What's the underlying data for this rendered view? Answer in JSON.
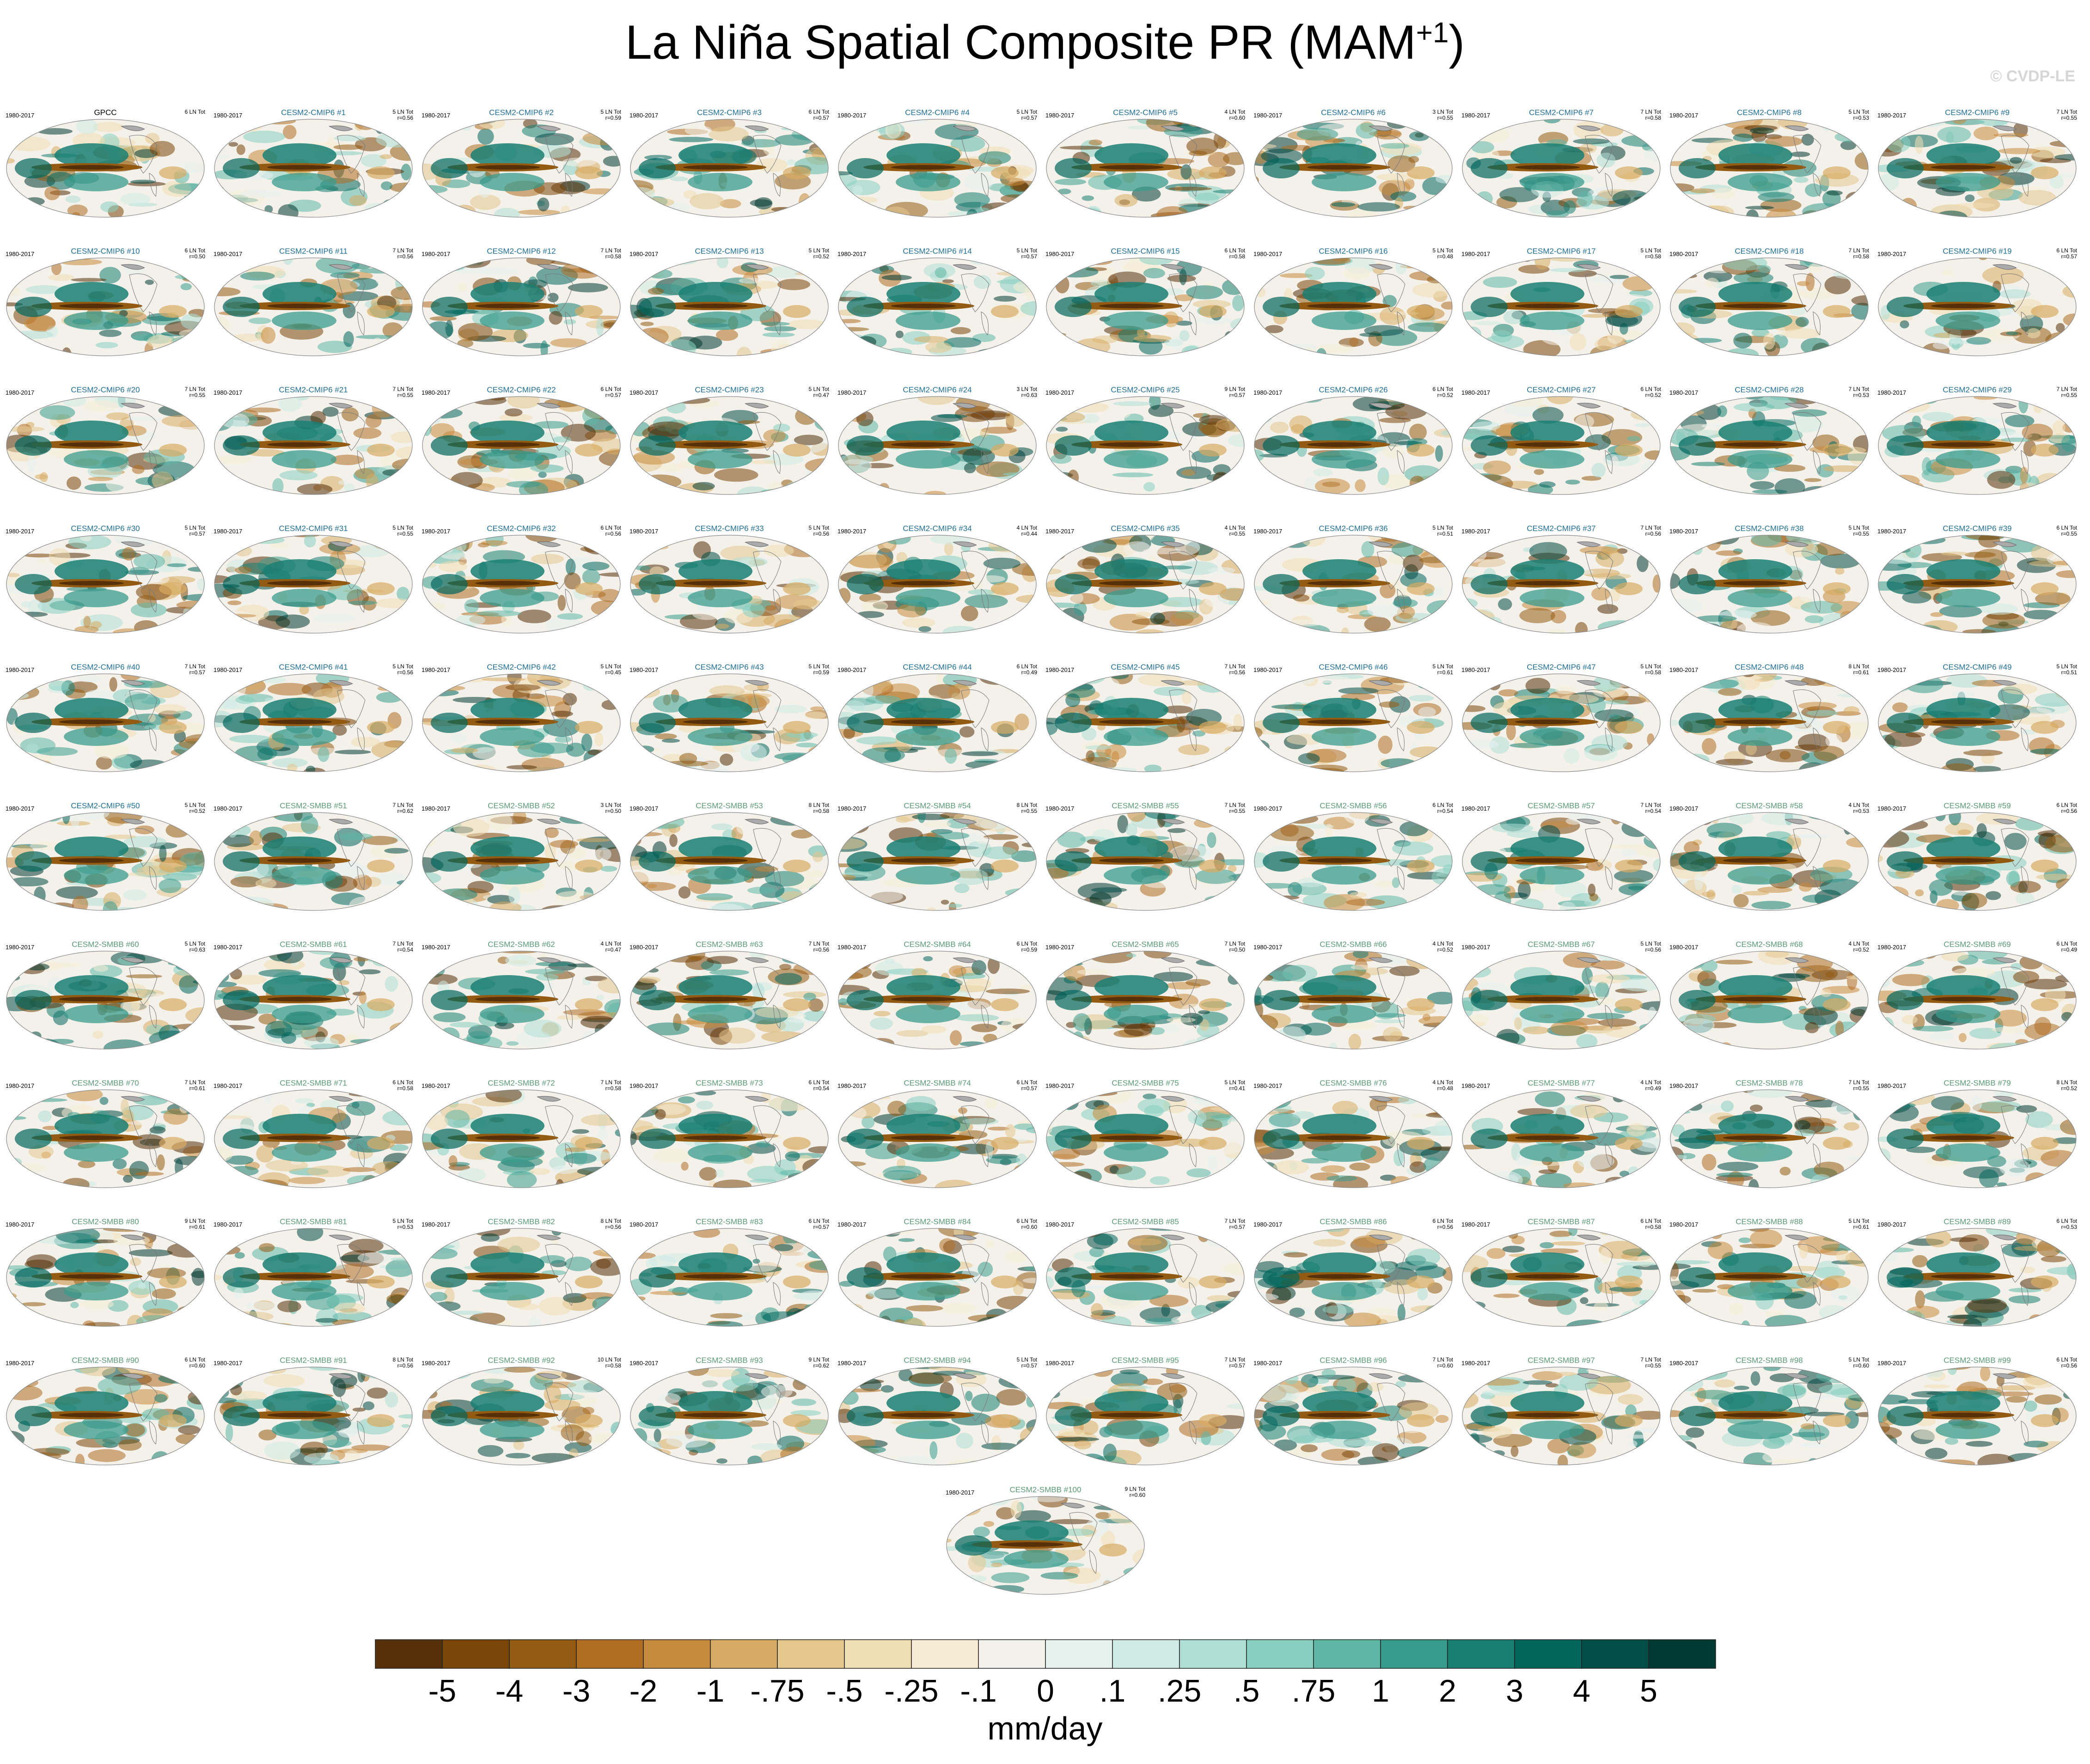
{
  "title_main": "La Niña Spatial Composite PR (MAM",
  "title_sup": "+1",
  "title_close": ")",
  "watermark": "© CVDP-LE",
  "units": "mm/day",
  "chart_data": {
    "type": "heatmap",
    "variable": "PR",
    "season": "MAM+1",
    "composite": "La Niña",
    "period": "1980-2017",
    "units": "mm/day",
    "colorbar": {
      "levels": [
        "-5",
        "-4",
        "-3",
        "-2",
        "-1",
        "-.75",
        "-.5",
        "-.25",
        "-.1",
        "0",
        ".1",
        ".25",
        ".5",
        ".75",
        "1",
        "2",
        "3",
        "4",
        "5"
      ],
      "colors": [
        "#553008",
        "#7a4509",
        "#935b12",
        "#b06e24",
        "#c78b3d",
        "#d7ab63",
        "#e4c78d",
        "#f0dfb5",
        "#f6ecd5",
        "#f4f1ea",
        "#e7f1ee",
        "#d0ebe5",
        "#afdfd6",
        "#89cfc1",
        "#5eb7a5",
        "#399b8c",
        "#1a7f73",
        "#02665c",
        "#024d45",
        "#013a32"
      ]
    },
    "panels": [
      {
        "name": "GPCC",
        "period": "1980-2017",
        "events": "6 LN Tot",
        "r": ""
      },
      {
        "name": "CESM2-CMIP6 #1",
        "period": "1980-2017",
        "events": "5 LN Tot",
        "r": "r=0.56"
      },
      {
        "name": "CESM2-CMIP6 #2",
        "period": "1980-2017",
        "events": "5 LN Tot",
        "r": "r=0.59"
      },
      {
        "name": "CESM2-CMIP6 #3",
        "period": "1980-2017",
        "events": "6 LN Tot",
        "r": "r=0.57"
      },
      {
        "name": "CESM2-CMIP6 #4",
        "period": "1980-2017",
        "events": "5 LN Tot",
        "r": "r=0.57"
      },
      {
        "name": "CESM2-CMIP6 #5",
        "period": "1980-2017",
        "events": "4 LN Tot",
        "r": "r=0.60"
      },
      {
        "name": "CESM2-CMIP6 #6",
        "period": "1980-2017",
        "events": "3 LN Tot",
        "r": "r=0.55"
      },
      {
        "name": "CESM2-CMIP6 #7",
        "period": "1980-2017",
        "events": "7 LN Tot",
        "r": "r=0.58"
      },
      {
        "name": "CESM2-CMIP6 #8",
        "period": "1980-2017",
        "events": "5 LN Tot",
        "r": "r=0.53"
      },
      {
        "name": "CESM2-CMIP6 #9",
        "period": "1980-2017",
        "events": "7 LN Tot",
        "r": "r=0.55"
      },
      {
        "name": "CESM2-CMIP6 #10",
        "period": "1980-2017",
        "events": "6 LN Tot",
        "r": "r=0.50"
      },
      {
        "name": "CESM2-CMIP6 #11",
        "period": "1980-2017",
        "events": "7 LN Tot",
        "r": "r=0.56"
      },
      {
        "name": "CESM2-CMIP6 #12",
        "period": "1980-2017",
        "events": "7 LN Tot",
        "r": "r=0.58"
      },
      {
        "name": "CESM2-CMIP6 #13",
        "period": "1980-2017",
        "events": "5 LN Tot",
        "r": "r=0.52"
      },
      {
        "name": "CESM2-CMIP6 #14",
        "period": "1980-2017",
        "events": "5 LN Tot",
        "r": "r=0.57"
      },
      {
        "name": "CESM2-CMIP6 #15",
        "period": "1980-2017",
        "events": "6 LN Tot",
        "r": "r=0.58"
      },
      {
        "name": "CESM2-CMIP6 #16",
        "period": "1980-2017",
        "events": "5 LN Tot",
        "r": "r=0.48"
      },
      {
        "name": "CESM2-CMIP6 #17",
        "period": "1980-2017",
        "events": "5 LN Tot",
        "r": "r=0.58"
      },
      {
        "name": "CESM2-CMIP6 #18",
        "period": "1980-2017",
        "events": "7 LN Tot",
        "r": "r=0.58"
      },
      {
        "name": "CESM2-CMIP6 #19",
        "period": "1980-2017",
        "events": "6 LN Tot",
        "r": "r=0.57"
      },
      {
        "name": "CESM2-CMIP6 #20",
        "period": "1980-2017",
        "events": "7 LN Tot",
        "r": "r=0.55"
      },
      {
        "name": "CESM2-CMIP6 #21",
        "period": "1980-2017",
        "events": "7 LN Tot",
        "r": "r=0.55"
      },
      {
        "name": "CESM2-CMIP6 #22",
        "period": "1980-2017",
        "events": "6 LN Tot",
        "r": "r=0.57"
      },
      {
        "name": "CESM2-CMIP6 #23",
        "period": "1980-2017",
        "events": "5 LN Tot",
        "r": "r=0.47"
      },
      {
        "name": "CESM2-CMIP6 #24",
        "period": "1980-2017",
        "events": "3 LN Tot",
        "r": "r=0.63"
      },
      {
        "name": "CESM2-CMIP6 #25",
        "period": "1980-2017",
        "events": "9 LN Tot",
        "r": "r=0.57"
      },
      {
        "name": "CESM2-CMIP6 #26",
        "period": "1980-2017",
        "events": "6 LN Tot",
        "r": "r=0.52"
      },
      {
        "name": "CESM2-CMIP6 #27",
        "period": "1980-2017",
        "events": "6 LN Tot",
        "r": "r=0.52"
      },
      {
        "name": "CESM2-CMIP6 #28",
        "period": "1980-2017",
        "events": "7 LN Tot",
        "r": "r=0.53"
      },
      {
        "name": "CESM2-CMIP6 #29",
        "period": "1980-2017",
        "events": "7 LN Tot",
        "r": "r=0.55"
      },
      {
        "name": "CESM2-CMIP6 #30",
        "period": "1980-2017",
        "events": "5 LN Tot",
        "r": "r=0.57"
      },
      {
        "name": "CESM2-CMIP6 #31",
        "period": "1980-2017",
        "events": "5 LN Tot",
        "r": "r=0.55"
      },
      {
        "name": "CESM2-CMIP6 #32",
        "period": "1980-2017",
        "events": "6 LN Tot",
        "r": "r=0.56"
      },
      {
        "name": "CESM2-CMIP6 #33",
        "period": "1980-2017",
        "events": "5 LN Tot",
        "r": "r=0.56"
      },
      {
        "name": "CESM2-CMIP6 #34",
        "period": "1980-2017",
        "events": "4 LN Tot",
        "r": "r=0.44"
      },
      {
        "name": "CESM2-CMIP6 #35",
        "period": "1980-2017",
        "events": "4 LN Tot",
        "r": "r=0.55"
      },
      {
        "name": "CESM2-CMIP6 #36",
        "period": "1980-2017",
        "events": "5 LN Tot",
        "r": "r=0.51"
      },
      {
        "name": "CESM2-CMIP6 #37",
        "period": "1980-2017",
        "events": "7 LN Tot",
        "r": "r=0.56"
      },
      {
        "name": "CESM2-CMIP6 #38",
        "period": "1980-2017",
        "events": "5 LN Tot",
        "r": "r=0.55"
      },
      {
        "name": "CESM2-CMIP6 #39",
        "period": "1980-2017",
        "events": "6 LN Tot",
        "r": "r=0.55"
      },
      {
        "name": "CESM2-CMIP6 #40",
        "period": "1980-2017",
        "events": "7 LN Tot",
        "r": "r=0.57"
      },
      {
        "name": "CESM2-CMIP6 #41",
        "period": "1980-2017",
        "events": "5 LN Tot",
        "r": "r=0.56"
      },
      {
        "name": "CESM2-CMIP6 #42",
        "period": "1980-2017",
        "events": "5 LN Tot",
        "r": "r=0.45"
      },
      {
        "name": "CESM2-CMIP6 #43",
        "period": "1980-2017",
        "events": "5 LN Tot",
        "r": "r=0.59"
      },
      {
        "name": "CESM2-CMIP6 #44",
        "period": "1980-2017",
        "events": "6 LN Tot",
        "r": "r=0.49"
      },
      {
        "name": "CESM2-CMIP6 #45",
        "period": "1980-2017",
        "events": "7 LN Tot",
        "r": "r=0.56"
      },
      {
        "name": "CESM2-CMIP6 #46",
        "period": "1980-2017",
        "events": "5 LN Tot",
        "r": "r=0.61"
      },
      {
        "name": "CESM2-CMIP6 #47",
        "period": "1980-2017",
        "events": "5 LN Tot",
        "r": "r=0.58"
      },
      {
        "name": "CESM2-CMIP6 #48",
        "period": "1980-2017",
        "events": "8 LN Tot",
        "r": "r=0.61"
      },
      {
        "name": "CESM2-CMIP6 #49",
        "period": "1980-2017",
        "events": "5 LN Tot",
        "r": "r=0.51"
      },
      {
        "name": "CESM2-CMIP6 #50",
        "period": "1980-2017",
        "events": "5 LN Tot",
        "r": "r=0.52"
      },
      {
        "name": "CESM2-SMBB #51",
        "period": "1980-2017",
        "events": "7 LN Tot",
        "r": "r=0.62"
      },
      {
        "name": "CESM2-SMBB #52",
        "period": "1980-2017",
        "events": "3 LN Tot",
        "r": "r=0.50"
      },
      {
        "name": "CESM2-SMBB #53",
        "period": "1980-2017",
        "events": "8 LN Tot",
        "r": "r=0.58"
      },
      {
        "name": "CESM2-SMBB #54",
        "period": "1980-2017",
        "events": "8 LN Tot",
        "r": "r=0.55"
      },
      {
        "name": "CESM2-SMBB #55",
        "period": "1980-2017",
        "events": "7 LN Tot",
        "r": "r=0.55"
      },
      {
        "name": "CESM2-SMBB #56",
        "period": "1980-2017",
        "events": "6 LN Tot",
        "r": "r=0.54"
      },
      {
        "name": "CESM2-SMBB #57",
        "period": "1980-2017",
        "events": "7 LN Tot",
        "r": "r=0.54"
      },
      {
        "name": "CESM2-SMBB #58",
        "period": "1980-2017",
        "events": "4 LN Tot",
        "r": "r=0.53"
      },
      {
        "name": "CESM2-SMBB #59",
        "period": "1980-2017",
        "events": "6 LN Tot",
        "r": "r=0.56"
      },
      {
        "name": "CESM2-SMBB #60",
        "period": "1980-2017",
        "events": "5 LN Tot",
        "r": "r=0.63"
      },
      {
        "name": "CESM2-SMBB #61",
        "period": "1980-2017",
        "events": "7 LN Tot",
        "r": "r=0.54"
      },
      {
        "name": "CESM2-SMBB #62",
        "period": "1980-2017",
        "events": "4 LN Tot",
        "r": "r=0.47"
      },
      {
        "name": "CESM2-SMBB #63",
        "period": "1980-2017",
        "events": "7 LN Tot",
        "r": "r=0.56"
      },
      {
        "name": "CESM2-SMBB #64",
        "period": "1980-2017",
        "events": "6 LN Tot",
        "r": "r=0.59"
      },
      {
        "name": "CESM2-SMBB #65",
        "period": "1980-2017",
        "events": "7 LN Tot",
        "r": "r=0.50"
      },
      {
        "name": "CESM2-SMBB #66",
        "period": "1980-2017",
        "events": "4 LN Tot",
        "r": "r=0.52"
      },
      {
        "name": "CESM2-SMBB #67",
        "period": "1980-2017",
        "events": "5 LN Tot",
        "r": "r=0.56"
      },
      {
        "name": "CESM2-SMBB #68",
        "period": "1980-2017",
        "events": "4 LN Tot",
        "r": "r=0.52"
      },
      {
        "name": "CESM2-SMBB #69",
        "period": "1980-2017",
        "events": "6 LN Tot",
        "r": "r=0.49"
      },
      {
        "name": "CESM2-SMBB #70",
        "period": "1980-2017",
        "events": "7 LN Tot",
        "r": "r=0.61"
      },
      {
        "name": "CESM2-SMBB #71",
        "period": "1980-2017",
        "events": "6 LN Tot",
        "r": "r=0.58"
      },
      {
        "name": "CESM2-SMBB #72",
        "period": "1980-2017",
        "events": "7 LN Tot",
        "r": "r=0.58"
      },
      {
        "name": "CESM2-SMBB #73",
        "period": "1980-2017",
        "events": "6 LN Tot",
        "r": "r=0.54"
      },
      {
        "name": "CESM2-SMBB #74",
        "period": "1980-2017",
        "events": "6 LN Tot",
        "r": "r=0.57"
      },
      {
        "name": "CESM2-SMBB #75",
        "period": "1980-2017",
        "events": "5 LN Tot",
        "r": "r=0.41"
      },
      {
        "name": "CESM2-SMBB #76",
        "period": "1980-2017",
        "events": "4 LN Tot",
        "r": "r=0.48"
      },
      {
        "name": "CESM2-SMBB #77",
        "period": "1980-2017",
        "events": "4 LN Tot",
        "r": "r=0.49"
      },
      {
        "name": "CESM2-SMBB #78",
        "period": "1980-2017",
        "events": "7 LN Tot",
        "r": "r=0.55"
      },
      {
        "name": "CESM2-SMBB #79",
        "period": "1980-2017",
        "events": "8 LN Tot",
        "r": "r=0.52"
      },
      {
        "name": "CESM2-SMBB #80",
        "period": "1980-2017",
        "events": "9 LN Tot",
        "r": "r=0.61"
      },
      {
        "name": "CESM2-SMBB #81",
        "period": "1980-2017",
        "events": "5 LN Tot",
        "r": "r=0.53"
      },
      {
        "name": "CESM2-SMBB #82",
        "period": "1980-2017",
        "events": "8 LN Tot",
        "r": "r=0.56"
      },
      {
        "name": "CESM2-SMBB #83",
        "period": "1980-2017",
        "events": "6 LN Tot",
        "r": "r=0.57"
      },
      {
        "name": "CESM2-SMBB #84",
        "period": "1980-2017",
        "events": "6 LN Tot",
        "r": "r=0.60"
      },
      {
        "name": "CESM2-SMBB #85",
        "period": "1980-2017",
        "events": "7 LN Tot",
        "r": "r=0.57"
      },
      {
        "name": "CESM2-SMBB #86",
        "period": "1980-2017",
        "events": "6 LN Tot",
        "r": "r=0.56"
      },
      {
        "name": "CESM2-SMBB #87",
        "period": "1980-2017",
        "events": "6 LN Tot",
        "r": "r=0.58"
      },
      {
        "name": "CESM2-SMBB #88",
        "period": "1980-2017",
        "events": "5 LN Tot",
        "r": "r=0.61"
      },
      {
        "name": "CESM2-SMBB #89",
        "period": "1980-2017",
        "events": "6 LN Tot",
        "r": "r=0.53"
      },
      {
        "name": "CESM2-SMBB #90",
        "period": "1980-2017",
        "events": "6 LN Tot",
        "r": "r=0.60"
      },
      {
        "name": "CESM2-SMBB #91",
        "period": "1980-2017",
        "events": "8 LN Tot",
        "r": "r=0.56"
      },
      {
        "name": "CESM2-SMBB #92",
        "period": "1980-2017",
        "events": "10 LN Tot",
        "r": "r=0.58"
      },
      {
        "name": "CESM2-SMBB #93",
        "period": "1980-2017",
        "events": "9 LN Tot",
        "r": "r=0.62"
      },
      {
        "name": "CESM2-SMBB #94",
        "period": "1980-2017",
        "events": "5 LN Tot",
        "r": "r=0.57"
      },
      {
        "name": "CESM2-SMBB #95",
        "period": "1980-2017",
        "events": "7 LN Tot",
        "r": "r=0.57"
      },
      {
        "name": "CESM2-SMBB #96",
        "period": "1980-2017",
        "events": "7 LN Tot",
        "r": "r=0.60"
      },
      {
        "name": "CESM2-SMBB #97",
        "period": "1980-2017",
        "events": "7 LN Tot",
        "r": "r=0.55"
      },
      {
        "name": "CESM2-SMBB #98",
        "period": "1980-2017",
        "events": "5 LN Tot",
        "r": "r=0.60"
      },
      {
        "name": "CESM2-SMBB #99",
        "period": "1980-2017",
        "events": "6 LN Tot",
        "r": "r=0.56"
      },
      {
        "name": "CESM2-SMBB #100",
        "period": "1980-2017",
        "events": "9 LN Tot",
        "r": "r=0.60"
      }
    ],
    "name_colors": {
      "GPCC": "#000000",
      "CESM2-CMIP6": "#1f6f9a",
      "CESM2-SMBB": "#5a9a7a"
    }
  }
}
